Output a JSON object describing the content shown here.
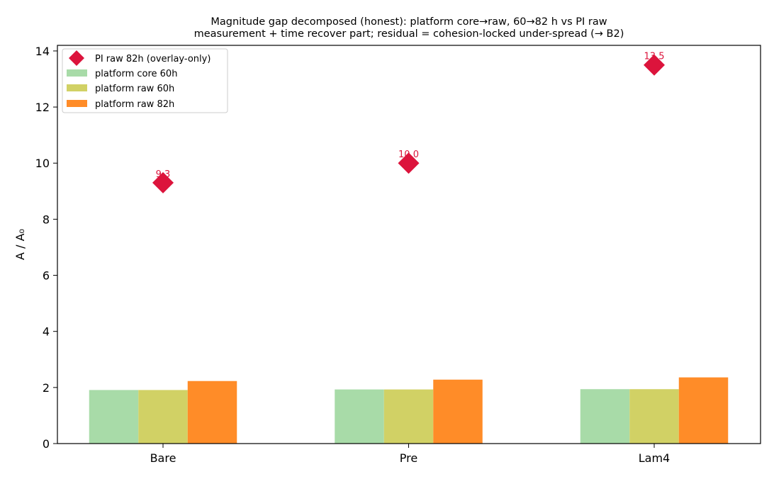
{
  "chart_data": {
    "type": "bar",
    "title_lines": [
      "Magnitude gap decomposed (honest): platform core→raw, 60→82 h vs PI raw",
      "measurement + time recover part; residual = cohesion-locked under-spread (→ B2)"
    ],
    "xlabel": "",
    "ylabel": "A / A₀",
    "ylim": [
      0,
      14.2
    ],
    "yticks": [
      0,
      2,
      4,
      6,
      8,
      10,
      12,
      14
    ],
    "categories": [
      "Bare",
      "Pre",
      "Lam4"
    ],
    "series": [
      {
        "name": "platform core 60h",
        "color": "#a8dba8",
        "values": [
          1.91,
          1.93,
          1.94
        ]
      },
      {
        "name": "platform raw 60h",
        "color": "#d1d165",
        "values": [
          1.91,
          1.93,
          1.94
        ]
      },
      {
        "name": "platform raw 82h",
        "color": "#ff8c28",
        "values": [
          2.23,
          2.28,
          2.36
        ]
      }
    ],
    "overlay": {
      "name": "PI raw 82h (overlay-only)",
      "marker": "diamond",
      "color": "#dc143c",
      "values": [
        9.3,
        10.0,
        13.5
      ],
      "labels": [
        "9.3",
        "10.0",
        "13.5"
      ]
    },
    "legend_position": "upper-left",
    "grid": false
  }
}
